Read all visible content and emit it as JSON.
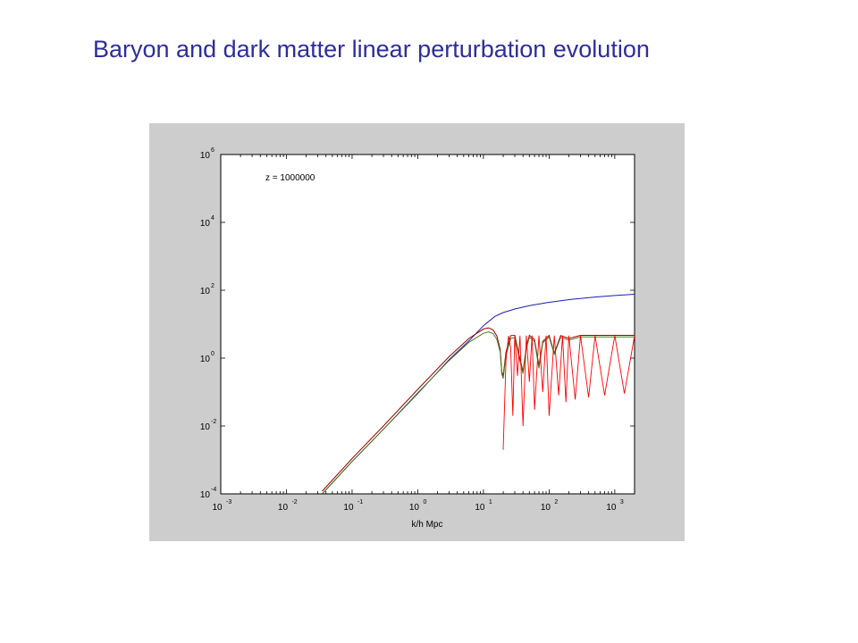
{
  "slide": {
    "title": "Baryon and dark matter linear perturbation evolution"
  },
  "chart_data": {
    "type": "line",
    "title": "",
    "annotation": "z = 1000000",
    "xlabel": "k/h Mpc",
    "ylabel": "",
    "xscale": "log",
    "yscale": "log",
    "xlim": [
      0.001,
      2000
    ],
    "ylim": [
      0.0001,
      1000000
    ],
    "grid": false,
    "legend": "none",
    "x_ticks": [
      {
        "base": "10",
        "exp": "-3",
        "value": 0.001
      },
      {
        "base": "10",
        "exp": "-2",
        "value": 0.01
      },
      {
        "base": "10",
        "exp": "-1",
        "value": 0.1
      },
      {
        "base": "10",
        "exp": "0",
        "value": 1
      },
      {
        "base": "10",
        "exp": "1",
        "value": 10
      },
      {
        "base": "10",
        "exp": "2",
        "value": 100
      },
      {
        "base": "10",
        "exp": "3",
        "value": 1000
      }
    ],
    "y_ticks": [
      {
        "base": "10",
        "exp": "-4",
        "value": 0.0001
      },
      {
        "base": "10",
        "exp": "-2",
        "value": 0.01
      },
      {
        "base": "10",
        "exp": "0",
        "value": 1
      },
      {
        "base": "10",
        "exp": "2",
        "value": 100
      },
      {
        "base": "10",
        "exp": "4",
        "value": 10000
      },
      {
        "base": "10",
        "exp": "6",
        "value": 1000000
      }
    ],
    "series": [
      {
        "color": "#1c1cb4",
        "x": [
          0.035,
          0.1,
          0.3,
          1,
          3,
          6,
          10,
          15,
          20,
          30,
          50,
          100,
          200,
          500,
          1000,
          2000
        ],
        "y": [
          0.0001,
          0.0009,
          0.008,
          0.09,
          0.9,
          3.2,
          9,
          17,
          22,
          28,
          35,
          44,
          53,
          63,
          70,
          76
        ]
      },
      {
        "color": "#9e0000",
        "x": [
          0.035,
          0.1,
          0.3,
          1,
          3,
          6,
          10,
          12,
          14,
          16,
          18,
          19,
          20,
          22,
          26,
          30,
          35,
          40,
          45,
          50,
          60,
          70,
          80,
          100,
          120,
          150,
          200,
          300,
          500,
          1000,
          2000
        ],
        "y": [
          0.00012,
          0.0011,
          0.01,
          0.12,
          1.1,
          3.8,
          7.2,
          7.8,
          6.8,
          4.5,
          1.8,
          0.4,
          0.3,
          1.5,
          4.6,
          4.7,
          1.2,
          0.4,
          2.2,
          4.7,
          3.5,
          0.6,
          3.1,
          4.7,
          1.4,
          4.6,
          3.8,
          4.7,
          4.7,
          4.7,
          4.7
        ]
      },
      {
        "color": "#4a7a1a",
        "x": [
          0.035,
          0.1,
          0.3,
          1,
          3,
          6,
          10,
          12,
          14,
          16,
          18,
          19,
          20,
          22,
          26,
          30,
          35,
          40,
          45,
          50,
          60,
          70,
          80,
          100,
          120,
          150,
          200,
          300,
          500,
          1000,
          2000
        ],
        "y": [
          0.0001,
          0.0009,
          0.008,
          0.095,
          0.85,
          2.9,
          5.4,
          5.9,
          5.3,
          3.6,
          1.5,
          0.35,
          0.25,
          1.2,
          3.8,
          4.0,
          1.0,
          0.35,
          1.9,
          4.1,
          3.1,
          0.5,
          2.8,
          4.2,
          1.3,
          4.1,
          3.4,
          4.2,
          4.2,
          4.2,
          4.2
        ]
      },
      {
        "color": "#ff0000",
        "style": "oscillating",
        "x": [
          20,
          22,
          24,
          26,
          28,
          30,
          33,
          36,
          40,
          45,
          50,
          55,
          60,
          70,
          80,
          90,
          100,
          120,
          140,
          160,
          180,
          200,
          250,
          300,
          400,
          500,
          700,
          1000,
          1400,
          2000
        ],
        "y": [
          0.002,
          0.8,
          4.5,
          2.0,
          0.02,
          4.6,
          0.3,
          4.6,
          0.01,
          4.6,
          0.2,
          4.6,
          0.03,
          4.6,
          0.1,
          4.6,
          0.02,
          4.6,
          0.08,
          4.6,
          0.05,
          4.6,
          0.06,
          4.6,
          0.07,
          4.6,
          0.08,
          4.6,
          0.09,
          4.6
        ]
      }
    ]
  }
}
